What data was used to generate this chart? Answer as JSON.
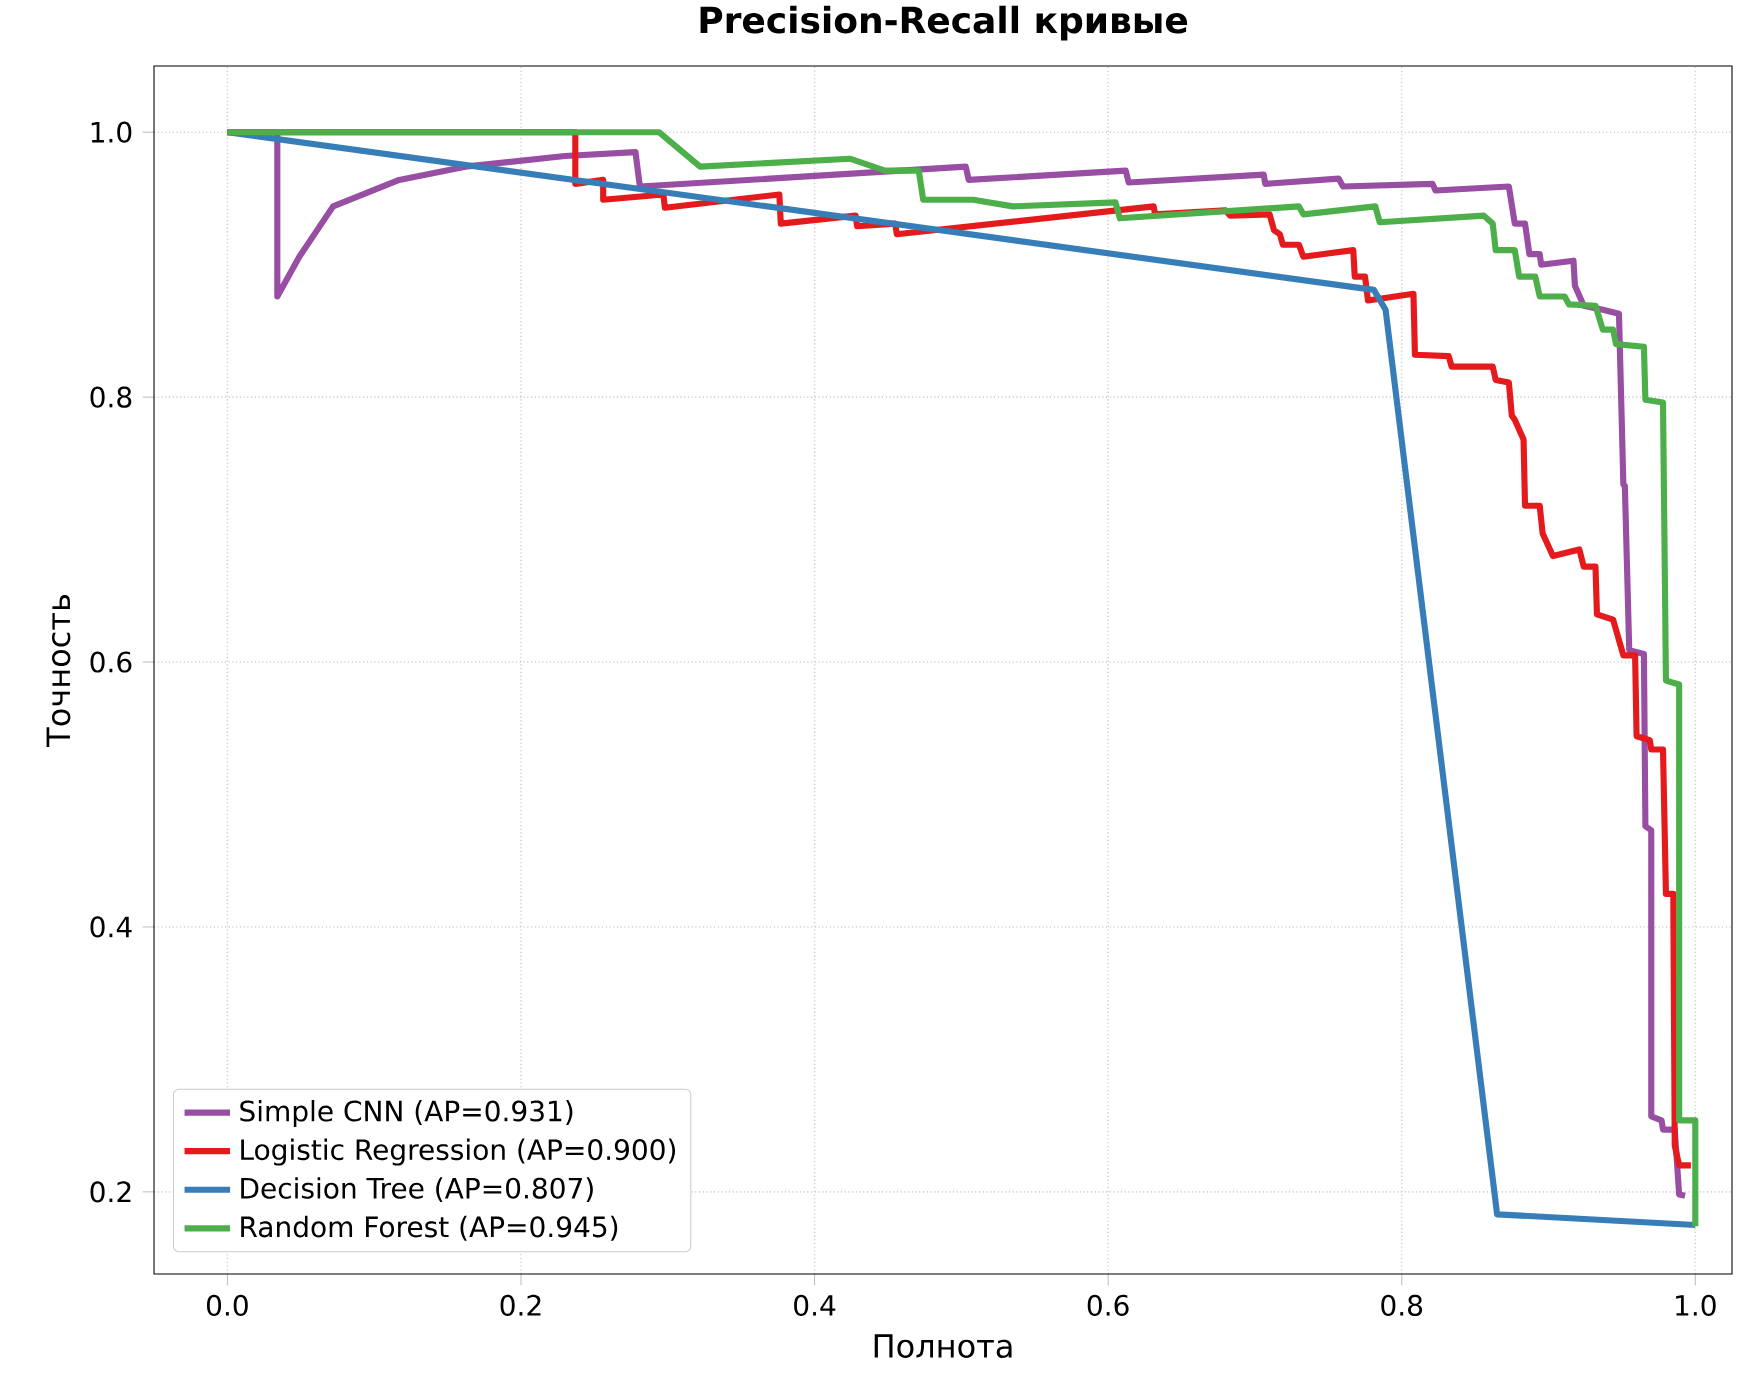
{
  "chart_data": {
    "type": "line",
    "title": "Precision-Recall кривые",
    "xlabel": "Полнота",
    "ylabel": "Точность",
    "xlim": [
      -0.05,
      1.025
    ],
    "ylim": [
      0.138,
      1.05
    ],
    "xticks": [
      {
        "value": 0,
        "label": "0.0"
      },
      {
        "value": 0.2,
        "label": "0.2"
      },
      {
        "value": 0.4,
        "label": "0.4"
      },
      {
        "value": 0.6,
        "label": "0.6"
      },
      {
        "value": 0.8,
        "label": "0.8"
      },
      {
        "value": 1,
        "label": "1.0"
      }
    ],
    "yticks": [
      {
        "value": 0.2,
        "label": "0.2"
      },
      {
        "value": 0.4,
        "label": "0.4"
      },
      {
        "value": 0.6,
        "label": "0.6"
      },
      {
        "value": 0.8,
        "label": "0.8"
      },
      {
        "value": 1,
        "label": "1.0"
      }
    ],
    "grid": true,
    "legend": "bottom left",
    "marker": "none",
    "line_style": "solid",
    "series": [
      {
        "name": "Simple CNN (AP=0.931)",
        "color": "#984ea3",
        "x": [
          0,
          0.034,
          0.034,
          0.049,
          0.072,
          0.117,
          0.162,
          0.23,
          0.278,
          0.281,
          0.503,
          0.505,
          0.612,
          0.614,
          0.706,
          0.707,
          0.757,
          0.76,
          0.821,
          0.823,
          0.873,
          0.877,
          0.884,
          0.887,
          0.894,
          0.895,
          0.917,
          0.918,
          0.924,
          0.937,
          0.948,
          0.951,
          0.952,
          0.955,
          0.965,
          0.966,
          0.97,
          0.97,
          0.977,
          0.978,
          0.986,
          0.989,
          0.993
        ],
        "values": [
          1.0,
          1.0,
          0.876,
          0.906,
          0.944,
          0.964,
          0.974,
          0.982,
          0.985,
          0.959,
          0.974,
          0.964,
          0.971,
          0.962,
          0.968,
          0.961,
          0.965,
          0.959,
          0.961,
          0.956,
          0.959,
          0.931,
          0.931,
          0.908,
          0.908,
          0.9,
          0.903,
          0.884,
          0.869,
          0.866,
          0.863,
          0.734,
          0.733,
          0.609,
          0.606,
          0.476,
          0.473,
          0.257,
          0.254,
          0.247,
          0.247,
          0.198,
          0.197
        ]
      },
      {
        "name": "Logistic Regression (AP=0.900)",
        "color": "#e41a1c",
        "x": [
          0,
          0.237,
          0.237,
          0.256,
          0.256,
          0.297,
          0.298,
          0.376,
          0.377,
          0.428,
          0.429,
          0.455,
          0.456,
          0.631,
          0.632,
          0.68,
          0.683,
          0.71,
          0.713,
          0.717,
          0.719,
          0.73,
          0.733,
          0.767,
          0.768,
          0.775,
          0.777,
          0.808,
          0.809,
          0.832,
          0.834,
          0.862,
          0.864,
          0.873,
          0.875,
          0.877,
          0.883,
          0.884,
          0.894,
          0.896,
          0.903,
          0.921,
          0.924,
          0.932,
          0.933,
          0.944,
          0.951,
          0.959,
          0.96,
          0.969,
          0.97,
          0.978,
          0.98,
          0.985,
          0.986,
          0.989,
          0.997
        ],
        "values": [
          1.0,
          1.0,
          0.961,
          0.964,
          0.949,
          0.953,
          0.943,
          0.953,
          0.931,
          0.937,
          0.929,
          0.931,
          0.923,
          0.944,
          0.938,
          0.941,
          0.937,
          0.938,
          0.926,
          0.923,
          0.915,
          0.915,
          0.906,
          0.911,
          0.891,
          0.891,
          0.873,
          0.878,
          0.832,
          0.831,
          0.823,
          0.823,
          0.813,
          0.811,
          0.786,
          0.783,
          0.768,
          0.718,
          0.718,
          0.697,
          0.68,
          0.685,
          0.672,
          0.672,
          0.636,
          0.632,
          0.605,
          0.605,
          0.544,
          0.541,
          0.534,
          0.534,
          0.425,
          0.425,
          0.235,
          0.22,
          0.22
        ]
      },
      {
        "name": "Decision Tree (AP=0.807)",
        "color": "#377eb8",
        "x": [
          0,
          0.781,
          0.789,
          0.865,
          1.0
        ],
        "values": [
          1.0,
          0.881,
          0.866,
          0.183,
          0.175
        ]
      },
      {
        "name": "Random Forest (AP=0.945)",
        "color": "#4daf4a",
        "x": [
          0,
          0.294,
          0.322,
          0.424,
          0.448,
          0.471,
          0.474,
          0.508,
          0.535,
          0.605,
          0.608,
          0.73,
          0.733,
          0.782,
          0.785,
          0.856,
          0.862,
          0.864,
          0.877,
          0.88,
          0.891,
          0.894,
          0.911,
          0.914,
          0.932,
          0.937,
          0.944,
          0.946,
          0.965,
          0.966,
          0.978,
          0.98,
          0.989,
          0.989,
          1.0,
          1.0
        ],
        "values": [
          1.0,
          1.0,
          0.974,
          0.98,
          0.971,
          0.971,
          0.949,
          0.949,
          0.944,
          0.947,
          0.935,
          0.944,
          0.938,
          0.944,
          0.932,
          0.937,
          0.931,
          0.911,
          0.911,
          0.891,
          0.891,
          0.876,
          0.876,
          0.87,
          0.869,
          0.851,
          0.851,
          0.84,
          0.838,
          0.798,
          0.796,
          0.586,
          0.583,
          0.254,
          0.254,
          0.174
        ]
      }
    ]
  }
}
